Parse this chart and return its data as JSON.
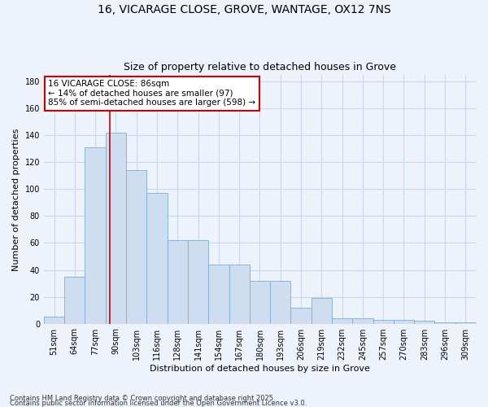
{
  "title_line1": "16, VICARAGE CLOSE, GROVE, WANTAGE, OX12 7NS",
  "title_line2": "Size of property relative to detached houses in Grove",
  "xlabel": "Distribution of detached houses by size in Grove",
  "ylabel": "Number of detached properties",
  "bar_color": "#cfddf0",
  "bar_edge_color": "#7aafd4",
  "categories": [
    "51sqm",
    "64sqm",
    "77sqm",
    "90sqm",
    "103sqm",
    "116sqm",
    "128sqm",
    "141sqm",
    "154sqm",
    "167sqm",
    "180sqm",
    "193sqm",
    "206sqm",
    "219sqm",
    "232sqm",
    "245sqm",
    "257sqm",
    "270sqm",
    "283sqm",
    "296sqm",
    "309sqm"
  ],
  "values": [
    5,
    35,
    131,
    142,
    114,
    97,
    62,
    62,
    44,
    44,
    32,
    32,
    12,
    19,
    4,
    4,
    3,
    3,
    2,
    1,
    1
  ],
  "vline_color": "#cc0000",
  "vline_position": 2.69,
  "annotation_text": "16 VICARAGE CLOSE: 86sqm\n← 14% of detached houses are smaller (97)\n85% of semi-detached houses are larger (598) →",
  "annotation_box_color": "#ffffff",
  "annotation_box_edge": "#cc0000",
  "footnote1": "Contains HM Land Registry data © Crown copyright and database right 2025.",
  "footnote2": "Contains public sector information licensed under the Open Government Licence v3.0.",
  "ylim": [
    0,
    185
  ],
  "background_color": "#edf2fb",
  "grid_color": "#c8d8ee",
  "title_fontsize": 10,
  "subtitle_fontsize": 9,
  "tick_fontsize": 7,
  "ylabel_fontsize": 8,
  "xlabel_fontsize": 8,
  "footnote_fontsize": 6,
  "annotation_fontsize": 7.5
}
